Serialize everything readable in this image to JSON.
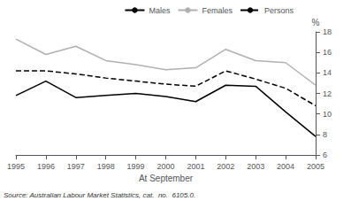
{
  "chart_data": {
    "type": "line",
    "x": [
      1995,
      1996,
      1997,
      1998,
      1999,
      2000,
      2001,
      2002,
      2003,
      2004,
      2005
    ],
    "series": [
      {
        "name": "Males",
        "color": "#000000",
        "line_style": "solid",
        "values": [
          11.8,
          13.2,
          11.6,
          11.8,
          12.0,
          11.7,
          11.2,
          12.8,
          12.7,
          10.2,
          7.8
        ]
      },
      {
        "name": "Females",
        "color": "#b0b0b0",
        "line_style": "solid",
        "values": [
          17.3,
          15.8,
          16.6,
          15.2,
          14.8,
          14.3,
          14.5,
          16.3,
          15.2,
          15.0,
          12.8
        ]
      },
      {
        "name": "Persons",
        "color": "#000000",
        "line_style": "dashed",
        "values": [
          14.2,
          14.2,
          13.9,
          13.5,
          13.2,
          12.9,
          12.7,
          14.2,
          13.4,
          12.5,
          10.8
        ]
      }
    ],
    "xlabel": "At September",
    "ylabel": "%",
    "xlim": [
      1995,
      2005
    ],
    "xticks": [
      1995,
      1996,
      1997,
      1998,
      1999,
      2000,
      2001,
      2002,
      2003,
      2004,
      2005
    ],
    "ylim": [
      6,
      18
    ],
    "yticks": [
      6,
      8,
      10,
      12,
      14,
      16,
      18
    ],
    "annotations": [
      "Source: Australian Labour Market Statistics, cat.  no.  6105.0."
    ],
    "legend": "upper right",
    "grid": false
  }
}
